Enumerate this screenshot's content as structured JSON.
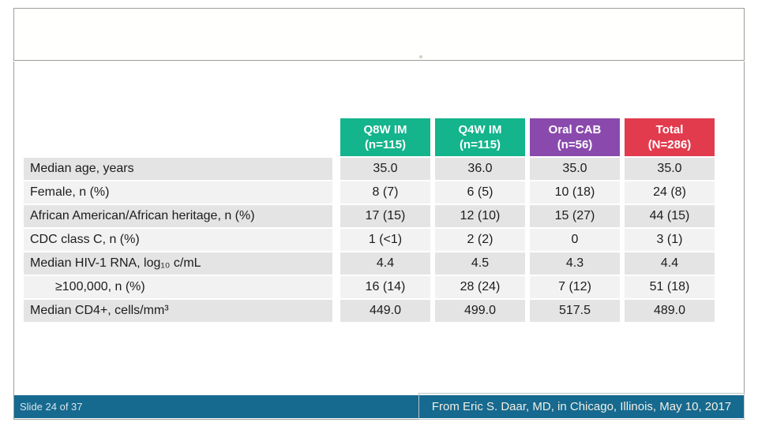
{
  "slide": {
    "counter": "Slide 24 of 37",
    "attribution": "From Eric S. Daar, MD, in Chicago, Illinois, May 10, 2017"
  },
  "table": {
    "columns": [
      {
        "label_line1": "Q8W IM",
        "label_line2": "(n=115)",
        "color": "#14b48c"
      },
      {
        "label_line1": "Q4W IM",
        "label_line2": "(n=115)",
        "color": "#14b48c"
      },
      {
        "label_line1": "Oral CAB",
        "label_line2": "(n=56)",
        "color": "#8a4aad"
      },
      {
        "label_line1": "Total",
        "label_line2": "(N=286)",
        "color": "#e23b4e"
      }
    ],
    "rows": [
      {
        "label": "Median age, years",
        "indent": false,
        "values": [
          "35.0",
          "36.0",
          "35.0",
          "35.0"
        ]
      },
      {
        "label": "Female, n (%)",
        "indent": false,
        "values": [
          "8 (7)",
          "6 (5)",
          "10 (18)",
          "24 (8)"
        ]
      },
      {
        "label": "African American/African heritage, n (%)",
        "indent": false,
        "values": [
          "17 (15)",
          "12 (10)",
          "15 (27)",
          "44 (15)"
        ]
      },
      {
        "label": "CDC class C, n (%)",
        "indent": false,
        "values": [
          "1 (<1)",
          "2 (2)",
          "0",
          "3 (1)"
        ]
      },
      {
        "label": "Median HIV-1 RNA, log₁₀ c/mL",
        "indent": false,
        "values": [
          "4.4",
          "4.5",
          "4.3",
          "4.4"
        ]
      },
      {
        "label": "≥100,000, n (%)",
        "indent": true,
        "values": [
          "16 (14)",
          "28 (24)",
          "7 (12)",
          "51 (18)"
        ]
      },
      {
        "label": "Median CD4+, cells/mm³",
        "indent": false,
        "values": [
          "449.0",
          "499.0",
          "517.5",
          "489.0"
        ]
      }
    ]
  },
  "colors": {
    "header_green": "#14b48c",
    "header_purple": "#8a4aad",
    "header_red": "#e23b4e",
    "row_stripe_dark": "#e4e4e4",
    "row_stripe_light": "#f2f2f2",
    "footer_bar": "#16698f",
    "slide_border": "#9aa096"
  }
}
